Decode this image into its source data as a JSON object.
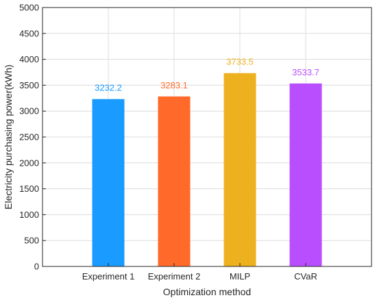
{
  "chart_data": {
    "type": "bar",
    "title": "",
    "xlabel": "Optimization method",
    "ylabel": "Electricity purchasing power(kWh)",
    "categories": [
      "Experiment 1",
      "Experiment 2",
      "MILP",
      "CVaR"
    ],
    "values": [
      3232.2,
      3283.1,
      3733.5,
      3533.7
    ],
    "data_labels": [
      "3232.2",
      "3283.1",
      "3733.5",
      "3533.7"
    ],
    "colors": [
      "#1a9bff",
      "#ff6a2a",
      "#edb120",
      "#b94eff"
    ],
    "ylim": [
      0,
      5000
    ],
    "yticks": [
      0,
      500,
      1000,
      1500,
      2000,
      2500,
      3000,
      3500,
      4000,
      4500,
      5000
    ],
    "ytick_labels": [
      "0",
      "500",
      "1000",
      "1500",
      "2000",
      "2500",
      "3000",
      "3500",
      "4000",
      "4500",
      "5000"
    ],
    "grid": true,
    "legend": "none"
  }
}
